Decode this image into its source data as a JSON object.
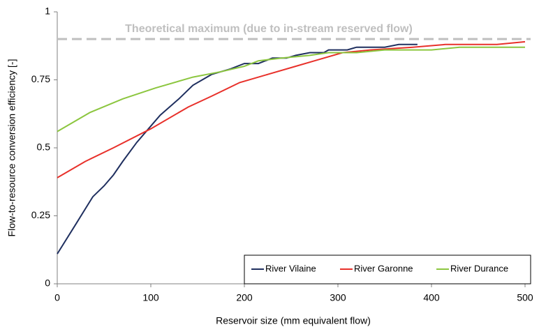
{
  "chart_data": {
    "type": "line",
    "xlabel": "Reservoir size (mm equivalent flow)",
    "ylabel": "Flow-to-resource conversion efficiency [-]",
    "xlim": [
      0,
      500
    ],
    "xticks": [
      0,
      100,
      200,
      300,
      400,
      500
    ],
    "ylim": [
      0,
      1
    ],
    "yticks": [
      0,
      0.25,
      0.5,
      0.75,
      1
    ],
    "grid": false,
    "legend": "lower right",
    "reference_line": {
      "value": 0.9,
      "label": "Theoretical maximum (due to in-stream reserved flow)",
      "color": "#bfbfbf"
    },
    "series": [
      {
        "name": "River Vilaine",
        "color": "#1f2f5f",
        "x": [
          0,
          20,
          38,
          50,
          60,
          70,
          85,
          100,
          110,
          130,
          145,
          165,
          185,
          200,
          215,
          230,
          245,
          255,
          270,
          285,
          290,
          310,
          320,
          350,
          365,
          385
        ],
        "values": [
          0.11,
          0.22,
          0.32,
          0.36,
          0.4,
          0.45,
          0.52,
          0.58,
          0.62,
          0.68,
          0.73,
          0.77,
          0.79,
          0.81,
          0.81,
          0.83,
          0.83,
          0.84,
          0.85,
          0.85,
          0.86,
          0.86,
          0.87,
          0.87,
          0.88,
          0.88
        ]
      },
      {
        "name": "River Garonne",
        "color": "#e8302a",
        "x": [
          0,
          30,
          60,
          100,
          140,
          165,
          195,
          225,
          255,
          275,
          305,
          335,
          380,
          415,
          470,
          500
        ],
        "values": [
          0.39,
          0.45,
          0.5,
          0.57,
          0.65,
          0.69,
          0.74,
          0.77,
          0.8,
          0.82,
          0.85,
          0.86,
          0.87,
          0.88,
          0.88,
          0.89
        ]
      },
      {
        "name": "River Durance",
        "color": "#8cc63f",
        "x": [
          0,
          35,
          70,
          105,
          145,
          175,
          200,
          215,
          240,
          270,
          290,
          320,
          350,
          400,
          430,
          500
        ],
        "values": [
          0.56,
          0.63,
          0.68,
          0.72,
          0.76,
          0.78,
          0.8,
          0.82,
          0.83,
          0.84,
          0.85,
          0.85,
          0.86,
          0.86,
          0.87,
          0.87
        ]
      }
    ]
  }
}
